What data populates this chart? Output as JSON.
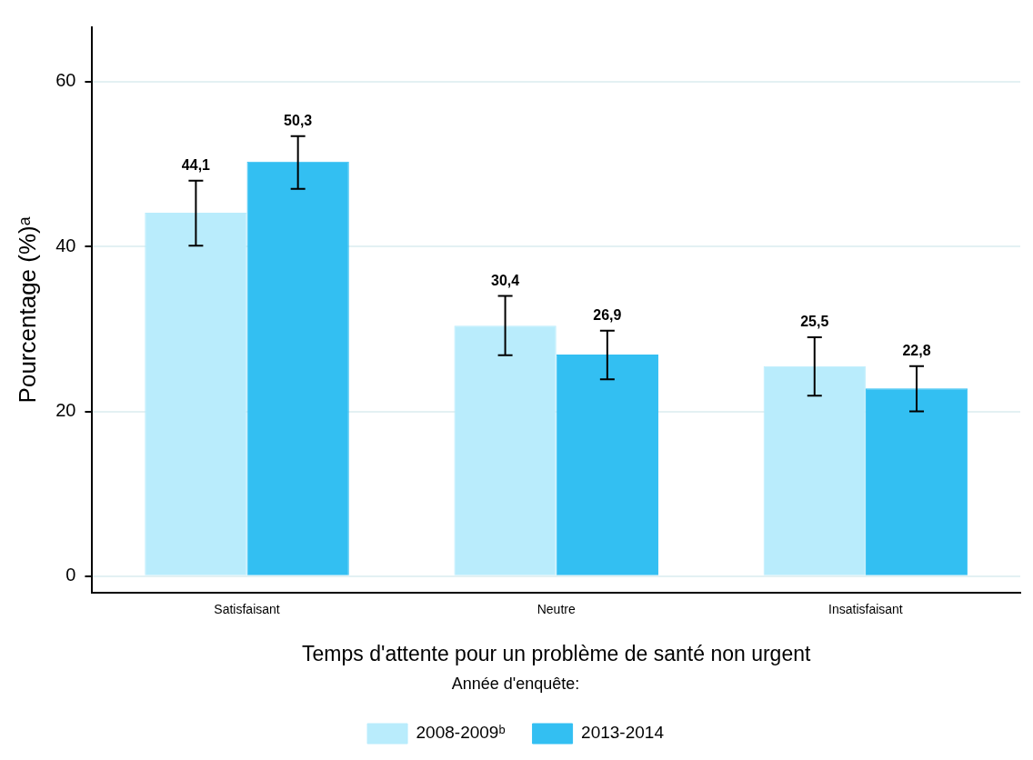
{
  "chart_data": {
    "type": "bar",
    "xlabel": "Temps d'attente pour un problème de santé non urgent",
    "ylabel": "Pourcentage (%)ᵃ",
    "legend_title": "Année d'enquête:",
    "categories": [
      "Satisfaisant",
      "Neutre",
      "Insatisfaisant"
    ],
    "series": [
      {
        "name": "2008-2009ᵇ",
        "color": "#b9ecfc",
        "values": [
          44.1,
          30.4,
          25.5
        ],
        "errors": [
          [
            40.1,
            48.0
          ],
          [
            26.8,
            34.0
          ],
          [
            21.9,
            29.0
          ]
        ],
        "value_labels": [
          "44,1",
          "30,4",
          "25,5"
        ]
      },
      {
        "name": "2013-2014",
        "color": "#33bff2",
        "values": [
          50.3,
          26.9,
          22.8
        ],
        "errors": [
          [
            47.0,
            53.4
          ],
          [
            23.9,
            29.8
          ],
          [
            20.0,
            25.5
          ]
        ],
        "value_labels": [
          "50,3",
          "26,9",
          "22,8"
        ]
      }
    ],
    "ylim": [
      -2,
      66.6
    ],
    "yticks": [
      0,
      20,
      40,
      60
    ],
    "grid": "y",
    "legend": "bottom"
  }
}
